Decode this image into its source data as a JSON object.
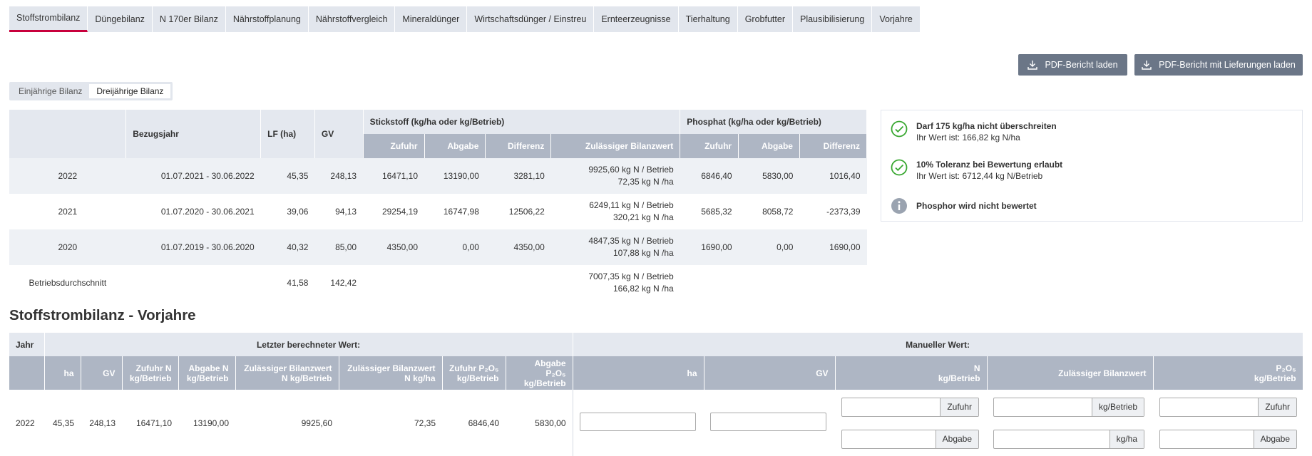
{
  "tabs": [
    "Stoffstrombilanz",
    "Düngebilanz",
    "N 170er Bilanz",
    "Nährstoffplanung",
    "Nährstoffvergleich",
    "Mineraldünger",
    "Wirtschaftsdünger / Einstreu",
    "Ernteerzeugnisse",
    "Tierhaltung",
    "Grobfutter",
    "Plausibilisierung",
    "Vorjahre"
  ],
  "buttons": {
    "pdf": "PDF-Bericht laden",
    "pdf_delivery": "PDF-Bericht mit Lieferungen laden"
  },
  "toggle": {
    "one_year": "Einjährige Bilanz",
    "three_year": "Dreijährige Bilanz"
  },
  "table": {
    "h_bezugsjahr": "Bezugsjahr",
    "h_lf": "LF (ha)",
    "h_gv": "GV",
    "h_stickstoff": "Stickstoff (kg/ha oder kg/Betrieb)",
    "h_phosphat": "Phosphat (kg/ha oder kg/Betrieb)",
    "h_zufuhr": "Zufuhr",
    "h_abgabe": "Abgabe",
    "h_differenz": "Differenz",
    "h_zul": "Zulässiger Bilanzwert",
    "rows": [
      {
        "year": "2022",
        "period": "01.07.2021 - 30.06.2022",
        "lf": "45,35",
        "gv": "248,13",
        "n_zufuhr": "16471,10",
        "n_abgabe": "13190,00",
        "n_diff": "3281,10",
        "zul1": "9925,60 kg N / Betrieb",
        "zul2": "72,35 kg N /ha",
        "p_zufuhr": "6846,40",
        "p_abgabe": "5830,00",
        "p_diff": "1016,40"
      },
      {
        "year": "2021",
        "period": "01.07.2020 - 30.06.2021",
        "lf": "39,06",
        "gv": "94,13",
        "n_zufuhr": "29254,19",
        "n_abgabe": "16747,98",
        "n_diff": "12506,22",
        "zul1": "6249,11 kg N / Betrieb",
        "zul2": "320,21 kg N /ha",
        "p_zufuhr": "5685,32",
        "p_abgabe": "8058,72",
        "p_diff": "-2373,39"
      },
      {
        "year": "2020",
        "period": "01.07.2019 - 30.06.2020",
        "lf": "40,32",
        "gv": "85,00",
        "n_zufuhr": "4350,00",
        "n_abgabe": "0,00",
        "n_diff": "4350,00",
        "zul1": "4847,35 kg N / Betrieb",
        "zul2": "107,88 kg N /ha",
        "p_zufuhr": "1690,00",
        "p_abgabe": "0,00",
        "p_diff": "1690,00"
      }
    ],
    "avg": {
      "label": "Betriebsdurchschnitt",
      "lf": "41,58",
      "gv": "142,42",
      "zul1": "7007,35 kg N / Betrieb",
      "zul2": "166,82 kg N /ha"
    }
  },
  "info": {
    "item1_title": "Darf 175 kg/ha nicht überschreiten",
    "item1_sub": "Ihr Wert ist: 166,82 kg N/ha",
    "item2_title": "10% Toleranz bei Bewertung erlaubt",
    "item2_sub": "Ihr Wert ist: 6712,44 kg N/Betrieb",
    "item3_title": "Phosphor wird nicht bewertet",
    "ok_color": "#3aa832",
    "neutral_color": "#9aa3b0"
  },
  "vorjahre": {
    "title": "Stoffstrombilanz - Vorjahre",
    "g_jahr": "Jahr",
    "g_last": "Letzter berechneter Wert:",
    "g_manual": "Manueller Wert:",
    "c_ha": "ha",
    "c_gv": "GV",
    "c_zufuhr_n_1": "Zufuhr N",
    "c_zufuhr_n_2": "kg/Betrieb",
    "c_abgabe_n_1": "Abgabe N",
    "c_abgabe_n_2": "kg/Betrieb",
    "c_zul_betr_1": "Zulässiger Bilanzwert",
    "c_zul_betr_2": "N kg/Betrieb",
    "c_zul_ha_1": "Zulässiger Bilanzwert",
    "c_zul_ha_2": "N kg/ha",
    "c_zufuhr_p_1": "Zufuhr P₂O₅",
    "c_zufuhr_p_2": "kg/Betrieb",
    "c_abgabe_p_1": "Abgabe P₂O₅",
    "c_abgabe_p_2": "kg/Betrieb",
    "m_ha": "ha",
    "m_gv": "GV",
    "m_n_1": "N",
    "m_n_2": "kg/Betrieb",
    "m_zul": "Zulässiger Bilanzwert",
    "m_p_1": "P₂O₅",
    "m_p_2": "kg/Betrieb",
    "row": {
      "year": "2022",
      "ha": "45,35",
      "gv": "248,13",
      "zufuhr_n": "16471,10",
      "abgabe_n": "13190,00",
      "zul_betr": "9925,60",
      "zul_ha": "72,35",
      "zufuhr_p": "6846,40",
      "abgabe_p": "5830,00"
    },
    "addon_zufuhr": "Zufuhr",
    "addon_abgabe": "Abgabe",
    "addon_kgbetrieb": "kg/Betrieb",
    "addon_kgha": "kg/ha"
  }
}
